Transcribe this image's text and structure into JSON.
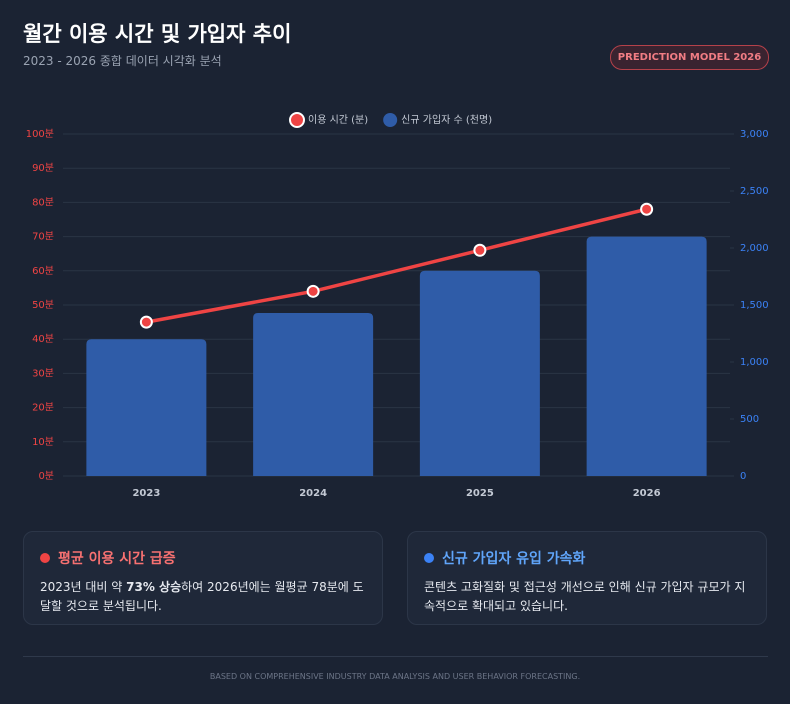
{
  "header": {
    "title": "월간 이용 시간 및 가입자 추이",
    "subtitle": "2023 - 2026 종합 데이터 시각화 분석",
    "badge": "PREDICTION MODEL 2026"
  },
  "chart_data": {
    "type": "combo",
    "categories": [
      "2023",
      "2024",
      "2025",
      "2026"
    ],
    "series": [
      {
        "name": "이용 시간 (분)",
        "type": "line",
        "color": "#ef4444",
        "values": [
          45,
          54,
          66,
          78
        ]
      },
      {
        "name": "신규 가입자 수 (천명)",
        "type": "bar",
        "axis": "y2",
        "color": "#2f5ca8",
        "values": [
          1200,
          1430,
          1800,
          2100
        ]
      }
    ],
    "ylim": [
      0,
      100
    ],
    "yticks": [
      {
        "value": 0,
        "label": "0분"
      },
      {
        "value": 10,
        "label": "10분"
      },
      {
        "value": 20,
        "label": "20분"
      },
      {
        "value": 30,
        "label": "30분"
      },
      {
        "value": 40,
        "label": "40분"
      },
      {
        "value": 50,
        "label": "50분"
      },
      {
        "value": 60,
        "label": "60분"
      },
      {
        "value": 70,
        "label": "70분"
      },
      {
        "value": 80,
        "label": "80분"
      },
      {
        "value": 90,
        "label": "90분"
      },
      {
        "value": 100,
        "label": "100분"
      }
    ],
    "y2lim": [
      0,
      3000
    ],
    "y2ticks": [
      0,
      500,
      {
        "value": 1000,
        "label": "1,000"
      },
      {
        "value": 1500,
        "label": "1,500"
      },
      {
        "value": 2000,
        "label": "2,000"
      },
      {
        "value": 2500,
        "label": "2,500"
      },
      {
        "value": 3000,
        "label": "3,000"
      }
    ],
    "grid": true,
    "legend": "top"
  },
  "insights": [
    {
      "title": "평균 이용 시간 급증",
      "body": [
        "2023년 대비 약 ",
        "73% 상승",
        "하여 2026년에는 월평균 78분에 도달할 것으로 분석됩니다."
      ]
    },
    {
      "title": "신규 가입자 유입 가속화",
      "body": [
        "콘텐츠 고화질화 및 접근성 개선으로 인해 신규 가입자 규모가 지속적으로 확대되고 있습니다."
      ]
    }
  ],
  "footer": "BASED ON COMPREHENSIVE INDUSTRY DATA ANALYSIS AND USER BEHAVIOR FORECASTING."
}
